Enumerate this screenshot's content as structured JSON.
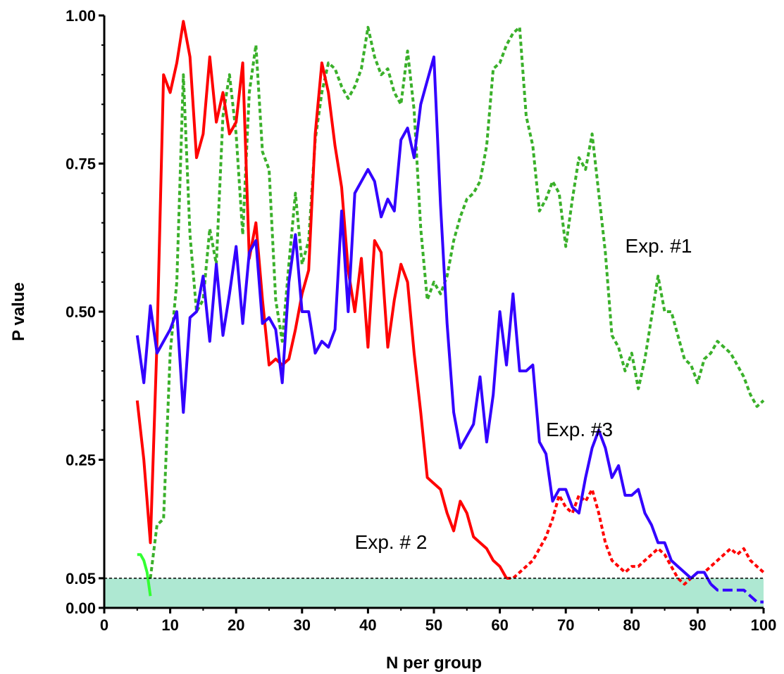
{
  "chart_data": {
    "type": "line",
    "title": "",
    "xlabel": "N per group",
    "ylabel": "P value",
    "xlim": [
      0,
      100
    ],
    "ylim": [
      0,
      1
    ],
    "x_ticks": [
      0,
      10,
      20,
      30,
      40,
      50,
      60,
      70,
      80,
      90,
      100
    ],
    "x_tick_labels": [
      "0",
      "10",
      "20",
      "30",
      "40",
      "50",
      "60",
      "70",
      "80",
      "90",
      "100"
    ],
    "y_ticks": [
      0,
      0.05,
      0.25,
      0.5,
      0.75,
      1.0
    ],
    "y_tick_labels": [
      "0.00",
      "0.05",
      "0.25",
      "0.50",
      "0.75",
      "1.00"
    ],
    "grid": false,
    "legend": "none",
    "significance_threshold": 0.05,
    "significance_band_color": "#aee8d2",
    "annotations": [
      {
        "text": "Exp. #1",
        "x": 79,
        "y": 0.6
      },
      {
        "text": "Exp. #3",
        "x": 67,
        "y": 0.29
      },
      {
        "text": "Exp. # 2",
        "x": 38,
        "y": 0.1
      }
    ],
    "series": [
      {
        "color": "#3ab02a",
        "dash": "dotted",
        "x": [
          7,
          8,
          9,
          10,
          11,
          12,
          13,
          14,
          15,
          16,
          17,
          18,
          19,
          20,
          21,
          22,
          23,
          24,
          25,
          26,
          27,
          28,
          29,
          30,
          31,
          32,
          33,
          34,
          35,
          36,
          37,
          38,
          39,
          40,
          41,
          42,
          43,
          44,
          45,
          46,
          47,
          48,
          49,
          50,
          51,
          52,
          53,
          54,
          55,
          56,
          57,
          58,
          59,
          60,
          61,
          62,
          63,
          64,
          65,
          66,
          67,
          68,
          69,
          70,
          71,
          72,
          73,
          74,
          75,
          76,
          77,
          78,
          79,
          80,
          81,
          82,
          83,
          84,
          85,
          86,
          87,
          88,
          89,
          90,
          91,
          92,
          93,
          94,
          95,
          96,
          97,
          98,
          99,
          100
        ],
        "y": [
          0.05,
          0.14,
          0.15,
          0.43,
          0.55,
          0.9,
          0.63,
          0.5,
          0.52,
          0.64,
          0.58,
          0.83,
          0.9,
          0.8,
          0.63,
          0.87,
          0.95,
          0.77,
          0.74,
          0.52,
          0.45,
          0.58,
          0.7,
          0.58,
          0.62,
          0.79,
          0.87,
          0.92,
          0.91,
          0.88,
          0.86,
          0.88,
          0.91,
          0.98,
          0.93,
          0.9,
          0.91,
          0.87,
          0.85,
          0.94,
          0.84,
          0.64,
          0.52,
          0.55,
          0.53,
          0.56,
          0.62,
          0.66,
          0.69,
          0.7,
          0.72,
          0.78,
          0.91,
          0.92,
          0.95,
          0.97,
          0.98,
          0.83,
          0.78,
          0.67,
          0.69,
          0.72,
          0.7,
          0.61,
          0.69,
          0.76,
          0.74,
          0.8,
          0.7,
          0.6,
          0.46,
          0.44,
          0.4,
          0.43,
          0.37,
          0.42,
          0.49,
          0.56,
          0.5,
          0.5,
          0.46,
          0.42,
          0.41,
          0.38,
          0.42,
          0.43,
          0.45,
          0.44,
          0.43,
          0.41,
          0.39,
          0.36,
          0.34,
          0.35
        ]
      },
      {
        "color": "#ff0000",
        "dash": "solid",
        "x": [
          5,
          6,
          7,
          8,
          9,
          10,
          11,
          12,
          13,
          14,
          15,
          16,
          17,
          18,
          19,
          20,
          21,
          22,
          23,
          24,
          25,
          26,
          27,
          28,
          29,
          30,
          31,
          32,
          33,
          34,
          35,
          36,
          37,
          38,
          39,
          40,
          41,
          42,
          43,
          44,
          45,
          46,
          47,
          48,
          49,
          50,
          51,
          52,
          53,
          54,
          55,
          56,
          57,
          58,
          59,
          60,
          61
        ],
        "y": [
          0.35,
          0.25,
          0.11,
          0.45,
          0.9,
          0.87,
          0.92,
          0.99,
          0.93,
          0.76,
          0.8,
          0.93,
          0.82,
          0.87,
          0.8,
          0.82,
          0.92,
          0.59,
          0.65,
          0.52,
          0.41,
          0.42,
          0.41,
          0.42,
          0.47,
          0.53,
          0.57,
          0.8,
          0.92,
          0.87,
          0.78,
          0.71,
          0.57,
          0.5,
          0.59,
          0.44,
          0.62,
          0.6,
          0.44,
          0.52,
          0.58,
          0.55,
          0.43,
          0.33,
          0.22,
          0.21,
          0.2,
          0.16,
          0.13,
          0.18,
          0.16,
          0.12,
          0.11,
          0.1,
          0.08,
          0.07,
          0.05
        ]
      },
      {
        "color": "#ff0000",
        "dash": "dotted",
        "x": [
          61,
          62,
          63,
          64,
          65,
          66,
          67,
          68,
          69,
          70,
          71,
          72,
          73,
          74,
          75,
          76,
          77,
          78,
          79,
          80,
          81,
          82,
          83,
          84,
          85,
          86,
          87,
          88,
          89,
          90,
          91,
          92,
          93,
          94,
          95,
          96,
          97,
          98,
          99,
          100
        ],
        "y": [
          0.05,
          0.05,
          0.06,
          0.07,
          0.08,
          0.1,
          0.12,
          0.15,
          0.19,
          0.17,
          0.16,
          0.19,
          0.18,
          0.2,
          0.16,
          0.11,
          0.08,
          0.07,
          0.06,
          0.07,
          0.07,
          0.08,
          0.09,
          0.1,
          0.09,
          0.07,
          0.05,
          0.04,
          0.05,
          0.06,
          0.06,
          0.07,
          0.08,
          0.09,
          0.1,
          0.09,
          0.1,
          0.08,
          0.07,
          0.06
        ]
      },
      {
        "color": "#3300ff",
        "dash": "solid",
        "x": [
          5,
          6,
          7,
          8,
          9,
          10,
          11,
          12,
          13,
          14,
          15,
          16,
          17,
          18,
          19,
          20,
          21,
          22,
          23,
          24,
          25,
          26,
          27,
          28,
          29,
          30,
          31,
          32,
          33,
          34,
          35,
          36,
          37,
          38,
          39,
          40,
          41,
          42,
          43,
          44,
          45,
          46,
          47,
          48,
          49,
          50,
          51,
          52,
          53,
          54,
          55,
          56,
          57,
          58,
          59,
          60,
          61,
          62,
          63,
          64,
          65,
          66,
          67,
          68,
          69,
          70,
          71,
          72,
          73,
          74,
          75,
          76,
          77,
          78,
          79,
          80,
          81,
          82,
          83,
          84,
          85,
          86,
          87,
          88,
          89,
          90,
          91,
          92
        ],
        "y": [
          0.46,
          0.38,
          0.51,
          0.43,
          0.45,
          0.47,
          0.5,
          0.33,
          0.49,
          0.5,
          0.56,
          0.45,
          0.58,
          0.46,
          0.53,
          0.61,
          0.48,
          0.6,
          0.62,
          0.48,
          0.49,
          0.47,
          0.38,
          0.55,
          0.63,
          0.5,
          0.5,
          0.43,
          0.45,
          0.44,
          0.47,
          0.67,
          0.5,
          0.7,
          0.72,
          0.74,
          0.72,
          0.66,
          0.69,
          0.67,
          0.79,
          0.81,
          0.76,
          0.85,
          0.89,
          0.93,
          0.68,
          0.48,
          0.33,
          0.27,
          0.29,
          0.31,
          0.39,
          0.28,
          0.36,
          0.5,
          0.41,
          0.53,
          0.4,
          0.4,
          0.41,
          0.28,
          0.26,
          0.18,
          0.2,
          0.2,
          0.17,
          0.16,
          0.22,
          0.27,
          0.3,
          0.27,
          0.22,
          0.24,
          0.19,
          0.19,
          0.2,
          0.16,
          0.14,
          0.11,
          0.11,
          0.08,
          0.07,
          0.06,
          0.05,
          0.06,
          0.06,
          0.04
        ]
      },
      {
        "color": "#3300ff",
        "dash": "dashed",
        "x": [
          92,
          93,
          94,
          95,
          96,
          97,
          98,
          99,
          100
        ],
        "y": [
          0.04,
          0.03,
          0.03,
          0.03,
          0.03,
          0.03,
          0.02,
          0.01,
          0.01
        ]
      },
      {
        "color": "#33ff33",
        "dash": "solid",
        "x": [
          5,
          5.5,
          6,
          6.5,
          7
        ],
        "y": [
          0.09,
          0.09,
          0.08,
          0.06,
          0.02
        ]
      }
    ]
  }
}
